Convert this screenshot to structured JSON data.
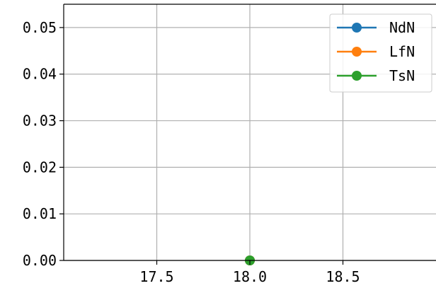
{
  "chart_data": {
    "type": "line",
    "title": "",
    "xlabel": "",
    "ylabel": "",
    "xlim": [
      17.0,
      19.0
    ],
    "ylim": [
      0.0,
      0.055
    ],
    "x_ticks": [
      17.5,
      18.0,
      18.5
    ],
    "x_tick_labels": [
      "17.5",
      "18.0",
      "18.5"
    ],
    "y_ticks": [
      0.0,
      0.01,
      0.02,
      0.03,
      0.04,
      0.05
    ],
    "y_tick_labels": [
      "0.00",
      "0.01",
      "0.02",
      "0.03",
      "0.04",
      "0.05"
    ],
    "grid": true,
    "legend_position": "top-right",
    "series": [
      {
        "name": "NdN",
        "color": "#1f77b4",
        "x": [
          18.0
        ],
        "y": [
          0.0
        ]
      },
      {
        "name": "LfN",
        "color": "#ff7f0e",
        "x": [
          18.0
        ],
        "y": [
          0.0
        ]
      },
      {
        "name": "TsN",
        "color": "#2ca02c",
        "x": [
          18.0
        ],
        "y": [
          0.0
        ]
      }
    ]
  }
}
